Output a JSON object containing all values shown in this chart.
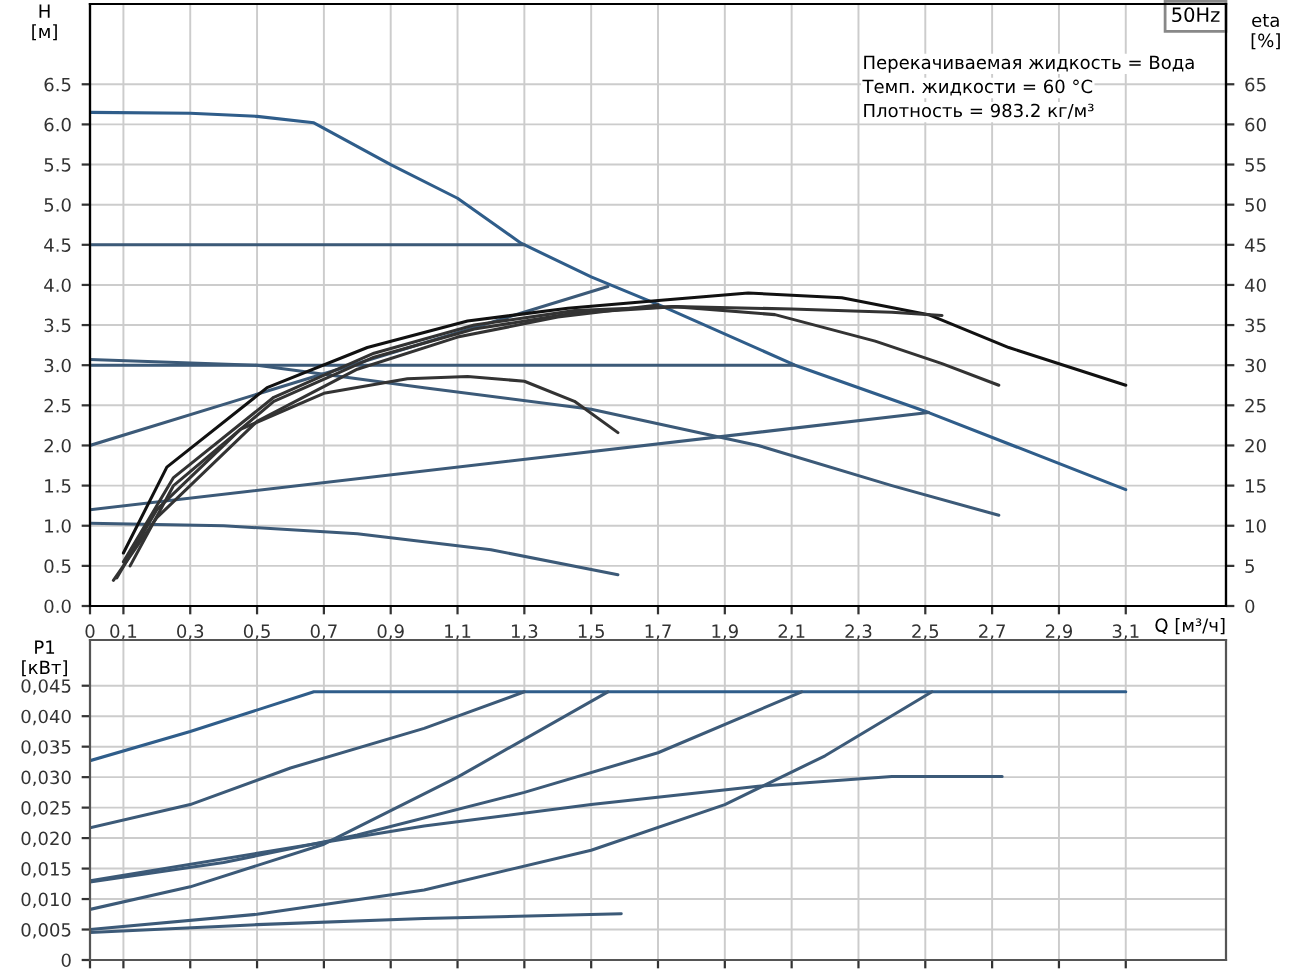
{
  "chart_data": [
    {
      "type": "line",
      "title": "50Hz",
      "xlabel": "Q [м³/ч]",
      "ylabel": "H\n[м]",
      "y2label": "eta\n[%]",
      "annotations": [
        "Перекачиваемая жидкость = Вода",
        "Темп. жидкости = 60 °C",
        "Плотность = 983.2 кг/м³"
      ],
      "xlim": [
        0,
        3.4
      ],
      "ylim": [
        0,
        7.5
      ],
      "y2lim": [
        0,
        75
      ],
      "xticks": [
        0,
        {
          "value": 0.1,
          "label": "0,1"
        },
        {
          "value": 0.3,
          "label": "0,3"
        },
        {
          "value": 0.5,
          "label": "0,5"
        },
        {
          "value": 0.7,
          "label": "0,7"
        },
        {
          "value": 0.9,
          "label": "0,9"
        },
        {
          "value": 1.1,
          "label": "1,1"
        },
        {
          "value": 1.3,
          "label": "1,3"
        },
        {
          "value": 1.5,
          "label": "1,5"
        },
        {
          "value": 1.7,
          "label": "1,7"
        },
        {
          "value": 1.9,
          "label": "1,9"
        },
        {
          "value": 2.1,
          "label": "2,1"
        },
        {
          "value": 2.3,
          "label": "2,3"
        },
        {
          "value": 2.5,
          "label": "2,5"
        },
        {
          "value": 2.7,
          "label": "2,7"
        },
        {
          "value": 2.9,
          "label": "2,9"
        },
        {
          "value": 3.1,
          "label": "3,1"
        }
      ],
      "yticks": [
        {
          "value": 0,
          "label": "0.0"
        },
        0.5,
        {
          "value": 1,
          "label": "1.0"
        },
        1.5,
        {
          "value": 2,
          "label": "2.0"
        },
        2.5,
        {
          "value": 3,
          "label": "3.0"
        },
        3.5,
        {
          "value": 4,
          "label": "4.0"
        },
        4.5,
        {
          "value": 5,
          "label": "5.0"
        },
        5.5,
        {
          "value": 6,
          "label": "6.0"
        },
        6.5
      ],
      "y2ticks": [
        0,
        5,
        10,
        15,
        20,
        25,
        30,
        35,
        40,
        45,
        50,
        55,
        60,
        65
      ],
      "grid": true,
      "series": [
        {
          "color": "#2f5d8a",
          "x": [
            0,
            0.3,
            0.5,
            0.67,
            0.9,
            1.1,
            1.29,
            1.5,
            1.71,
            2.11,
            2.51,
            3.1
          ],
          "values": [
            6.15,
            6.14,
            6.1,
            6.02,
            5.5,
            5.08,
            4.52,
            4.1,
            3.74,
            3.0,
            2.41,
            1.45
          ]
        },
        {
          "color": "#3c5a78",
          "x": [
            0,
            1.3
          ],
          "values": [
            4.5,
            4.5
          ]
        },
        {
          "color": "#3c5a78",
          "x": [
            0,
            2.11
          ],
          "values": [
            3.0,
            3.0
          ]
        },
        {
          "color": "#3c5a78",
          "x": [
            0,
            1.55
          ],
          "values": [
            2.0,
            3.98
          ]
        },
        {
          "color": "#3c5a78",
          "x": [
            0,
            2.51
          ],
          "values": [
            1.2,
            2.41
          ]
        },
        {
          "color": "#3c5a78",
          "x": [
            0,
            0.5,
            1.0,
            1.5,
            2.0,
            2.4,
            2.72
          ],
          "values": [
            3.07,
            3.0,
            2.72,
            2.45,
            2.0,
            1.5,
            1.13
          ]
        },
        {
          "color": "#3c5a78",
          "x": [
            0,
            0.4,
            0.8,
            1.2,
            1.58
          ],
          "values": [
            1.03,
            1.0,
            0.9,
            0.7,
            0.39
          ]
        },
        {
          "color": "#111111",
          "axis": "y2",
          "x": [
            0.1,
            0.23,
            0.53,
            0.83,
            1.13,
            1.43,
            1.71,
            1.97,
            2.25,
            2.51,
            2.75,
            3.1
          ],
          "values": [
            6.6,
            17.3,
            27.2,
            32.2,
            35.5,
            37.1,
            38.1,
            39.0,
            38.4,
            36.3,
            32.2,
            27.5
          ]
        },
        {
          "color": "#333333",
          "axis": "y2",
          "x": [
            0.12,
            0.25,
            0.55,
            0.85,
            1.15,
            1.45,
            1.75,
            2.05,
            2.35,
            2.55,
            2.72
          ],
          "values": [
            5,
            15,
            25.5,
            31,
            34.5,
            36.5,
            37.3,
            36.3,
            33.0,
            30.2,
            27.5
          ]
        },
        {
          "color": "#333333",
          "axis": "y2",
          "x": [
            0.1,
            0.25,
            0.55,
            0.85,
            1.15,
            1.45,
            1.75,
            2.1,
            2.4,
            2.55
          ],
          "values": [
            5.5,
            16,
            26,
            31.5,
            35,
            36.8,
            37.3,
            37.0,
            36.6,
            36.2
          ]
        },
        {
          "color": "#333333",
          "axis": "y2",
          "x": [
            0.08,
            0.2,
            0.45,
            0.7,
            0.95,
            1.13,
            1.3,
            1.45,
            1.58
          ],
          "values": [
            3.5,
            12,
            22,
            26.5,
            28.3,
            28.6,
            28.0,
            25.5,
            21.6
          ]
        },
        {
          "color": "#333333",
          "axis": "y2",
          "x": [
            0.07,
            0.2,
            0.5,
            0.8,
            1.1,
            1.4,
            1.7
          ],
          "values": [
            3.2,
            11,
            23,
            29.5,
            33.5,
            36,
            37.5
          ]
        }
      ]
    },
    {
      "type": "line",
      "ylabel": "P1\n[кВт]",
      "tick_labels": "y",
      "grid": true,
      "xlim": [
        0,
        3.4
      ],
      "ylim": [
        0,
        0.0525
      ],
      "xticks": [
        0,
        0.1,
        0.3,
        0.5,
        0.7,
        0.9,
        1.1,
        1.3,
        1.5,
        1.7,
        1.9,
        2.1,
        2.3,
        2.5,
        2.7,
        2.9,
        3.1
      ],
      "yticks": [
        0,
        {
          "value": 0.005,
          "label": "0,005"
        },
        {
          "value": 0.01,
          "label": "0,010"
        },
        {
          "value": 0.015,
          "label": "0,015"
        },
        {
          "value": 0.02,
          "label": "0,020"
        },
        {
          "value": 0.025,
          "label": "0,025"
        },
        {
          "value": 0.03,
          "label": "0,030"
        },
        {
          "value": 0.035,
          "label": "0,035"
        },
        {
          "value": 0.04,
          "label": "0,040"
        },
        {
          "value": 0.045,
          "label": "0,045"
        }
      ],
      "series": [
        {
          "color": "#2f5d8a",
          "x": [
            0,
            0.3,
            0.67,
            3.1
          ],
          "values": [
            0.0327,
            0.0375,
            0.044,
            0.044
          ]
        },
        {
          "color": "#3c5a78",
          "x": [
            0,
            0.3,
            0.6,
            1.0,
            1.3
          ],
          "values": [
            0.0217,
            0.0255,
            0.0315,
            0.038,
            0.044
          ]
        },
        {
          "color": "#3c5a78",
          "x": [
            0,
            0.3,
            0.7,
            1.1,
            1.55
          ],
          "values": [
            0.0083,
            0.012,
            0.019,
            0.03,
            0.044
          ]
        },
        {
          "color": "#3c5a78",
          "x": [
            0,
            0.4,
            0.8,
            1.3,
            1.7,
            2.13
          ],
          "values": [
            0.0128,
            0.016,
            0.0205,
            0.0275,
            0.034,
            0.044
          ]
        },
        {
          "color": "#3c5a78",
          "x": [
            0,
            0.5,
            1.0,
            1.5,
            1.9,
            2.2,
            2.52
          ],
          "values": [
            0.005,
            0.0075,
            0.0115,
            0.018,
            0.0255,
            0.0335,
            0.044
          ]
        },
        {
          "color": "#3c5a78",
          "x": [
            0,
            0.5,
            1.0,
            1.5,
            2.0,
            2.4,
            2.73
          ],
          "values": [
            0.013,
            0.0175,
            0.022,
            0.0255,
            0.0285,
            0.0301,
            0.0301
          ]
        },
        {
          "color": "#3c5a78",
          "x": [
            0,
            0.5,
            1.0,
            1.59
          ],
          "values": [
            0.0045,
            0.0058,
            0.0068,
            0.0076
          ]
        }
      ]
    }
  ]
}
